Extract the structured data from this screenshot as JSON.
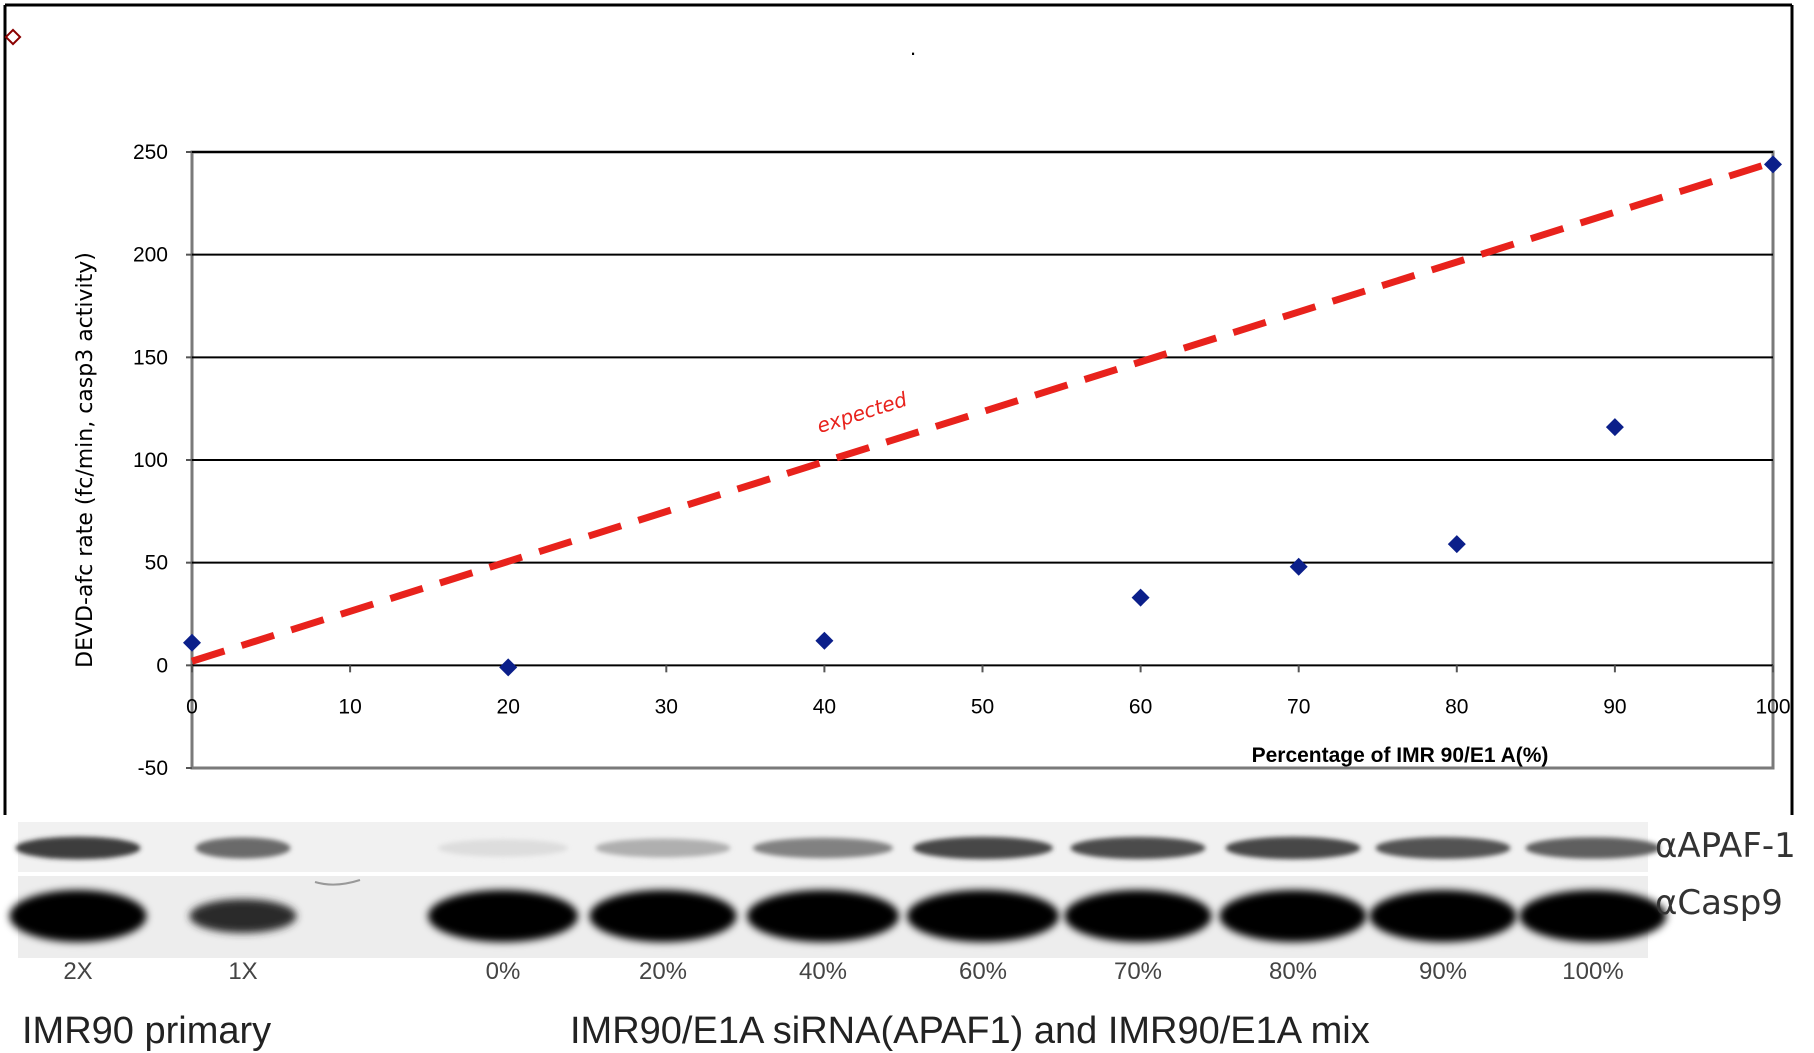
{
  "chart_data": {
    "type": "scatter",
    "title": ".",
    "ylabel": "DEVD-afc rate (fc/min, casp3 activity)",
    "xlabel": "Percentage of IMR 90/E1 A(%)",
    "x_tick_labels": [
      "0",
      "10",
      "20",
      "30",
      "40",
      "50",
      "60",
      "70",
      "80",
      "90",
      "100"
    ],
    "y_tick_labels": [
      "250",
      "200",
      "150",
      "100",
      "50",
      "0",
      "-50"
    ],
    "ylim": [
      -50,
      250
    ],
    "grid": true,
    "series": [
      {
        "marker": "diamond",
        "color": "#0b1f8a",
        "points": [
          {
            "x": "0",
            "y": 11
          },
          {
            "x": "20",
            "y": -1
          },
          {
            "x": "40",
            "y": 12
          },
          {
            "x": "60",
            "y": 33
          },
          {
            "x": "70",
            "y": 48
          },
          {
            "x": "80",
            "y": 59
          },
          {
            "x": "90",
            "y": 116
          },
          {
            "x": "100",
            "y": 244
          }
        ]
      }
    ],
    "reference_line": {
      "label": "expected",
      "color": "#e8221c",
      "style": "dashed",
      "from": {
        "x": "0",
        "y": 2
      },
      "to": {
        "x": "100",
        "y": 245
      }
    }
  },
  "blot": {
    "antibodies": [
      "αAPAF-1",
      "αCasp9"
    ],
    "lanes": [
      "2X",
      "1X",
      "0%",
      "20%",
      "40%",
      "60%",
      "70%",
      "80%",
      "90%",
      "100%"
    ],
    "group_left": "IMR90 primary",
    "group_right": "IMR90/E1A siRNA(APAF1) and IMR90/E1A mix"
  },
  "corner_icon": "diamond-outline-icon"
}
